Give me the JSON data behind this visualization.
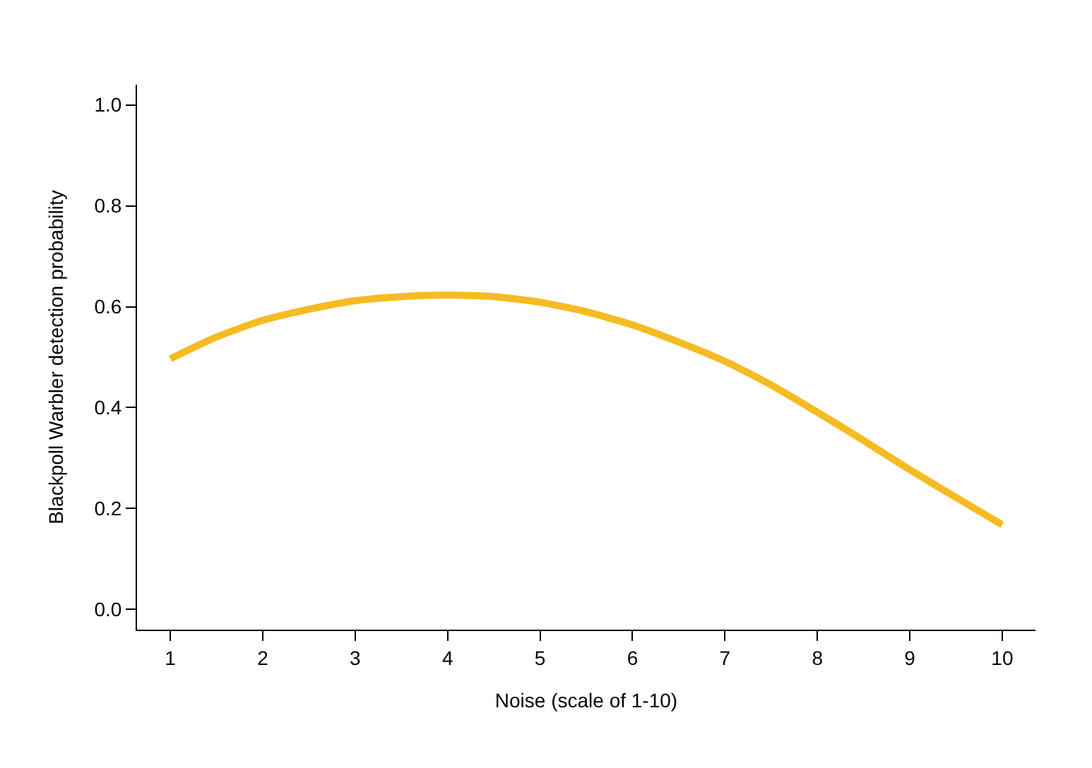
{
  "chart_data": {
    "type": "line",
    "xlabel": "Noise (scale of 1-10)",
    "ylabel": "Blackpoll Warbler detection probability",
    "x": [
      1,
      1.5,
      2,
      2.5,
      3,
      3.5,
      4,
      4.5,
      5,
      5.5,
      6,
      6.5,
      7,
      7.5,
      8,
      8.5,
      9,
      9.5,
      10
    ],
    "series": [
      {
        "color": "#f5bb22",
        "values": [
          0.497,
          0.54,
          0.573,
          0.595,
          0.612,
          0.62,
          0.623,
          0.62,
          0.609,
          0.59,
          0.564,
          0.53,
          0.492,
          0.445,
          0.391,
          0.335,
          0.277,
          0.222,
          0.168
        ]
      }
    ],
    "xlim": [
      0.64,
      10.36
    ],
    "ylim": [
      -0.04,
      1.04
    ],
    "xticks": [
      1,
      2,
      3,
      4,
      5,
      6,
      7,
      8,
      9,
      10
    ],
    "yticks": [
      {
        "value": 0,
        "label": "0.0"
      },
      {
        "value": 0.2,
        "label": "0.2"
      },
      {
        "value": 0.4,
        "label": "0.4"
      },
      {
        "value": 0.6,
        "label": "0.6"
      },
      {
        "value": 0.8,
        "label": "0.8"
      },
      {
        "value": 1,
        "label": "1.0"
      }
    ],
    "grid": false,
    "legend": false,
    "marker": "none",
    "line_style": "solid"
  }
}
